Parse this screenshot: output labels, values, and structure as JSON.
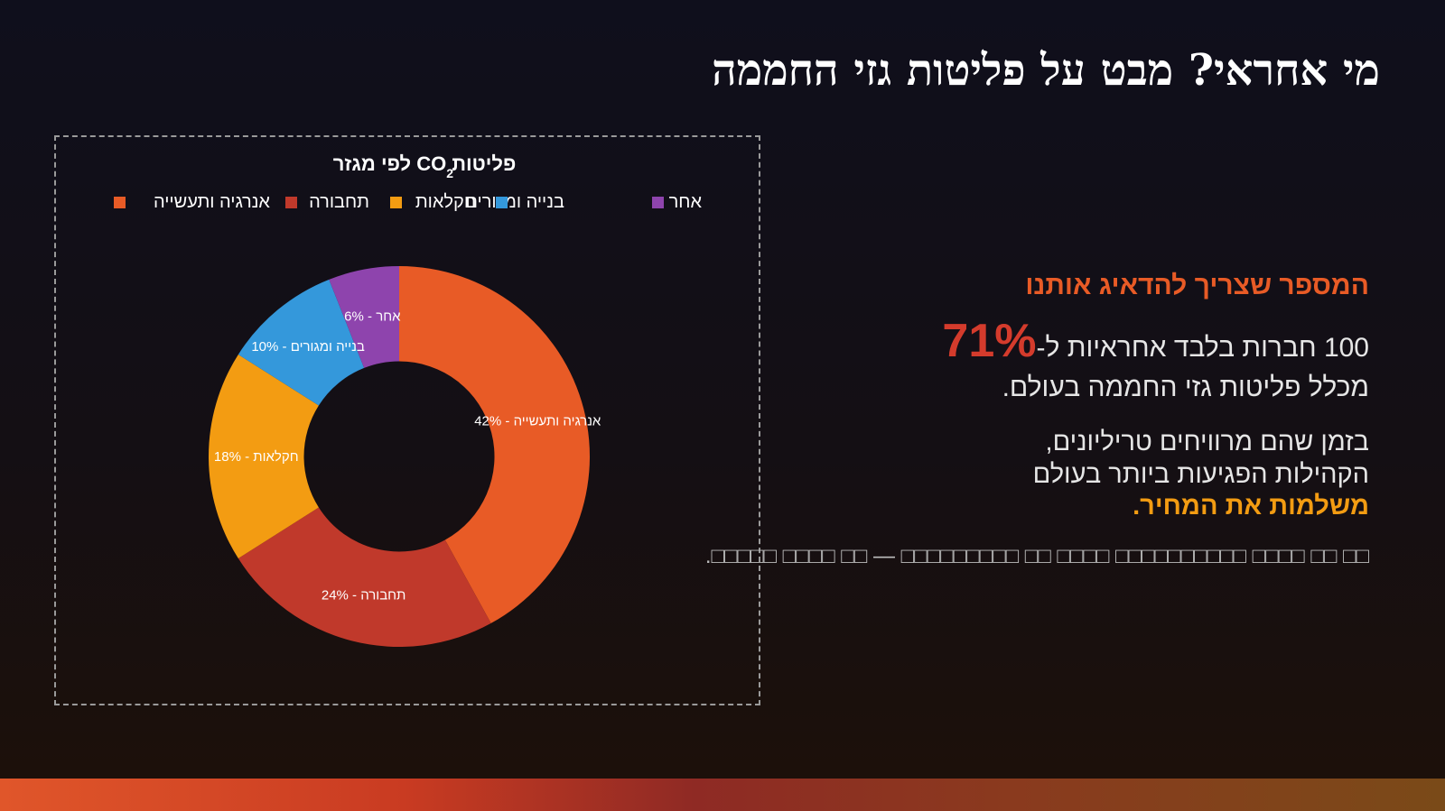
{
  "slide": {
    "title": "מי אחראי? מבט על פליטות גזי החממה"
  },
  "right_panel": {
    "heading": "המספר שצריך להדאיג אותנו",
    "stat_prefix": "100 חברות בלבד אחראיות ל-",
    "stat_value": "71%",
    "stat_suffix": "מכלל פליטות גזי החממה בעולם.",
    "para_line1": "בזמן שהם מרוויחים טריליונים,",
    "para_line2": "הקהילות הפגיעות ביותר בעולם",
    "para_emph": "משלמות את המחיר.",
    "placeholder": "□□ □□ □□□□ □□□□□□□□□□ □□□□ □□ □□□□□□□□□ — □□ □□□□ □□□□□."
  },
  "colors": {
    "accent_orange": "#e85b26",
    "accent_red": "#d43b2c",
    "accent_yellow": "#f39c12"
  },
  "chart_data": {
    "type": "pie",
    "title_part1": "פליטות",
    "title_co": "CO",
    "title_sub": "2",
    "title_part2": "לפי מגזר",
    "legend_position": "top",
    "categories": [
      "אנרגיה ותעשייה",
      "תחבורה",
      "חקלאות",
      "בנייה ומגורים",
      "אחר"
    ],
    "values": [
      42,
      24,
      18,
      10,
      6
    ],
    "value_labels": [
      "42%",
      "24%",
      "18%",
      "10%",
      "6%"
    ],
    "colors": [
      "#e85b26",
      "#c0392b",
      "#f39c12",
      "#3498db",
      "#8e44ad"
    ],
    "hole": 0.5
  }
}
